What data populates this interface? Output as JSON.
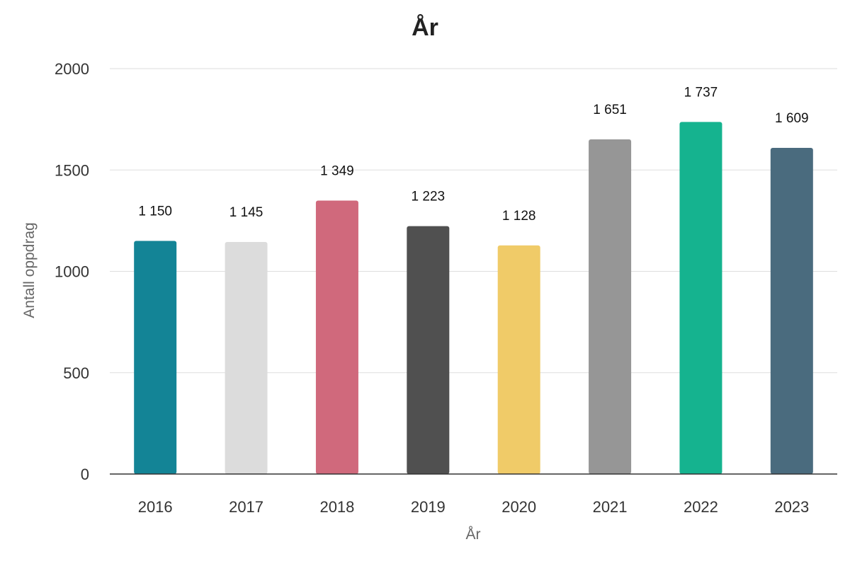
{
  "chart_data": {
    "type": "bar",
    "title": "År",
    "xlabel": "År",
    "ylabel": "Antall oppdrag",
    "categories": [
      "2016",
      "2017",
      "2018",
      "2019",
      "2020",
      "2021",
      "2022",
      "2023"
    ],
    "values": [
      1150,
      1145,
      1349,
      1223,
      1128,
      1651,
      1737,
      1609
    ],
    "value_labels": [
      "1 150",
      "1 145",
      "1 349",
      "1 223",
      "1 128",
      "1 651",
      "1 737",
      "1 609"
    ],
    "colors": [
      "#138496",
      "#dcdcdc",
      "#d0697c",
      "#505050",
      "#f0cb68",
      "#969696",
      "#15b38f",
      "#4a6b7e"
    ],
    "ylim": [
      0,
      2000
    ],
    "yticks": [
      0,
      500,
      1000,
      1500,
      2000
    ],
    "grid": true,
    "legend": "none"
  }
}
